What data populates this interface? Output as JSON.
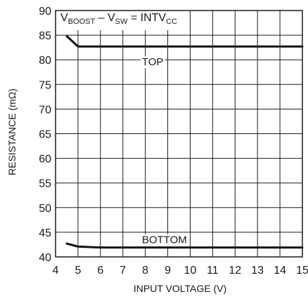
{
  "chart_data": {
    "type": "line",
    "xlabel": "INPUT VOLTAGE (V)",
    "ylabel": "RESISTANCE (mΩ)",
    "xlim": [
      4,
      15
    ],
    "ylim": [
      40,
      90
    ],
    "x_ticks": [
      4,
      5,
      6,
      7,
      8,
      9,
      10,
      11,
      12,
      13,
      14,
      15
    ],
    "y_ticks": [
      40,
      45,
      50,
      55,
      60,
      65,
      70,
      75,
      80,
      85,
      90
    ],
    "grid": true,
    "annotation": {
      "v1": "V",
      "v1_sub": "BOOST",
      "dash": " – ",
      "v2": "V",
      "v2_sub": "SW",
      "eq": " = ",
      "v3": "INTV",
      "v3_sub": "CC"
    },
    "series": [
      {
        "name": "TOP",
        "x": [
          4.5,
          5,
          6,
          7,
          8,
          9,
          10,
          11,
          12,
          13,
          14,
          15
        ],
        "y": [
          84.8,
          82.7,
          82.7,
          82.7,
          82.7,
          82.7,
          82.7,
          82.7,
          82.7,
          82.7,
          82.7,
          82.7
        ]
      },
      {
        "name": "BOTTOM",
        "x": [
          4.5,
          5,
          6,
          7,
          8,
          9,
          10,
          11,
          12,
          13,
          14,
          15
        ],
        "y": [
          42.7,
          42.1,
          41.9,
          41.9,
          41.9,
          41.9,
          41.9,
          41.9,
          41.9,
          41.9,
          41.9,
          41.9
        ]
      }
    ]
  }
}
